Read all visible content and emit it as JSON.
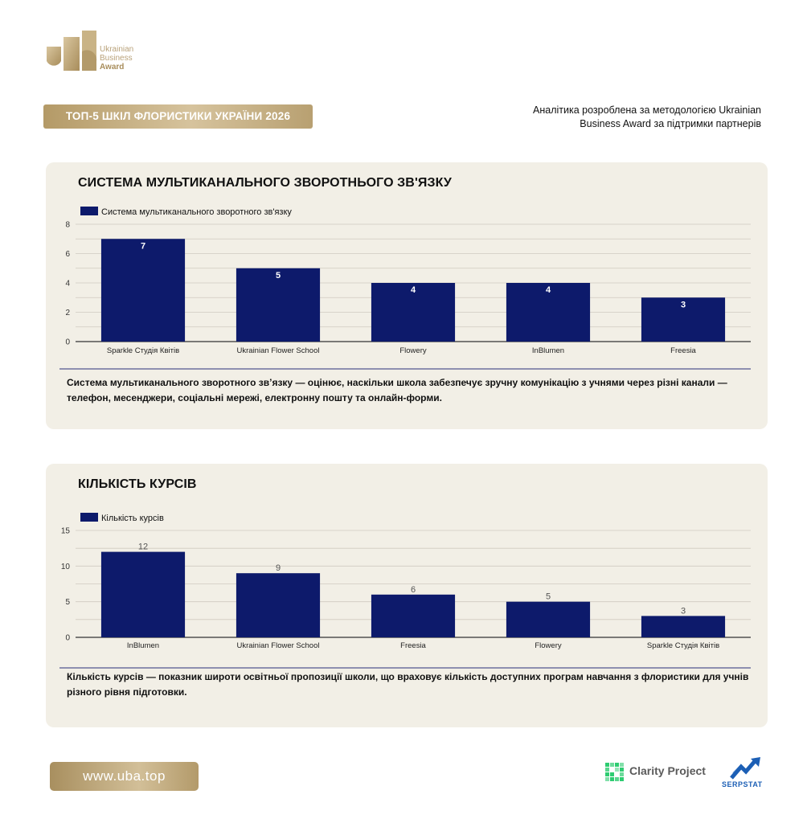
{
  "brand": {
    "logo_line1": "Ukrainian",
    "logo_line2": "Business",
    "logo_line3": "Award",
    "gold": "#b49a67"
  },
  "header": {
    "title": "ТОП-5 ШКІЛ ФЛОРИСТИКИ УКРАЇНИ 2026",
    "note_line1": "Аналітика розроблена за методологією Ukrainian",
    "note_line2": "Business Award за підтримки партнерів"
  },
  "cards": [
    {
      "title": "СИСТЕМА МУЛЬТИКАНАЛЬНОГО ЗВОРОТНЬОГО ЗВ'ЯЗКУ",
      "description": "Система мультиканального зворотного зв’язку — оцінює, наскільки школа забезпечує зручну комунікацію з учнями через різні канали — телефон, месенджери, соціальні мережі, електронну пошту та онлайн-форми."
    },
    {
      "title": "КІЛЬКІСТЬ КУРСІВ",
      "description": "Кількість курсів — показник широти освітньої пропозиції школи, що враховує кількість доступних програм навчання з флористики для учнів різного рівня підготовки."
    }
  ],
  "chart_data": [
    {
      "type": "bar",
      "title": "СИСТЕМА МУЛЬТИКАНАЛЬНОГО ЗВОРОТНЬОГО ЗВ'ЯЗКУ",
      "categories": [
        "Sparkle Студія Квітів",
        "Ukrainian Flower School",
        "Flowery",
        "InBlumen",
        "Freesia"
      ],
      "series": [
        {
          "name": "Система мультиканального зворотного зв'язку",
          "values": [
            7,
            5,
            4,
            4,
            3
          ]
        }
      ],
      "yticks": [
        0,
        2,
        4,
        6,
        8
      ],
      "ylim": [
        0,
        8
      ],
      "label_position": "inside",
      "legend": "top-left",
      "grid": true,
      "bar_color": "#0d1a6b"
    },
    {
      "type": "bar",
      "title": "КІЛЬКІСТЬ КУРСІВ",
      "categories": [
        "InBlumen",
        "Ukrainian Flower School",
        "Freesia",
        "Flowery",
        "Sparkle Студія Квітів"
      ],
      "series": [
        {
          "name": "Кількість курсів",
          "values": [
            12,
            9,
            6,
            5,
            3
          ]
        }
      ],
      "yticks": [
        0,
        5,
        10,
        15
      ],
      "ylim": [
        0,
        15
      ],
      "label_position": "above",
      "legend": "top-left",
      "grid": true,
      "bar_color": "#0d1a6b"
    }
  ],
  "footer": {
    "url": "www.uba.top",
    "partner1": "Clarity Project",
    "partner2": "SERPSTAT",
    "partner1_color": "#27ae60",
    "partner2_color": "#1c5fb5"
  }
}
